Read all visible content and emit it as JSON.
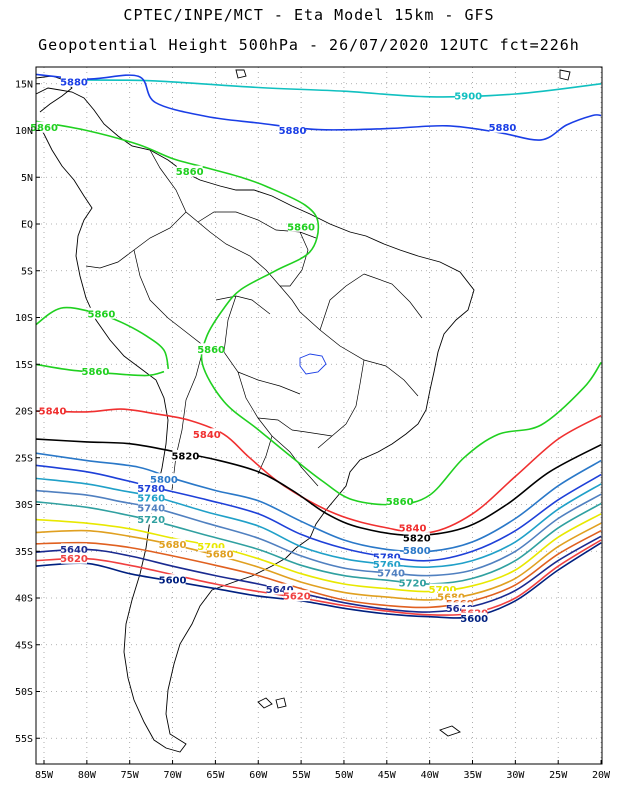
{
  "title_line1": "CPTEC/INPE/MCT -  Eta Model 15km - GFS",
  "title_line2": "Geopotential Height 500hPa - 26/07/2020 12UTC fct=226h",
  "lat_ticks": [
    {
      "label": "15N",
      "lat": 15
    },
    {
      "label": "10N",
      "lat": 10
    },
    {
      "label": "5N",
      "lat": 5
    },
    {
      "label": "EQ",
      "lat": 0
    },
    {
      "label": "5S",
      "lat": -5
    },
    {
      "label": "10S",
      "lat": -10
    },
    {
      "label": "15S",
      "lat": -15
    },
    {
      "label": "20S",
      "lat": -20
    },
    {
      "label": "25S",
      "lat": -25
    },
    {
      "label": "30S",
      "lat": -30
    },
    {
      "label": "35S",
      "lat": -35
    },
    {
      "label": "40S",
      "lat": -40
    },
    {
      "label": "45S",
      "lat": -45
    },
    {
      "label": "50S",
      "lat": -50
    },
    {
      "label": "55S",
      "lat": -55
    }
  ],
  "lon_ticks": [
    {
      "label": "85W",
      "lon": -85
    },
    {
      "label": "80W",
      "lon": -80
    },
    {
      "label": "75W",
      "lon": -75
    },
    {
      "label": "70W",
      "lon": -70
    },
    {
      "label": "65W",
      "lon": -65
    },
    {
      "label": "60W",
      "lon": -60
    },
    {
      "label": "55W",
      "lon": -55
    },
    {
      "label": "50W",
      "lon": -50
    },
    {
      "label": "45W",
      "lon": -45
    },
    {
      "label": "40W",
      "lon": -40
    },
    {
      "label": "35W",
      "lon": -35
    },
    {
      "label": "30W",
      "lon": -30
    },
    {
      "label": "25W",
      "lon": -25
    },
    {
      "label": "20W",
      "lon": -20
    }
  ],
  "contours": [
    {
      "value": 5900,
      "label": "5900",
      "color": "#10c0c0",
      "pts": [
        [
          -80.5,
          15.4
        ],
        [
          -72,
          15.3
        ],
        [
          -60,
          14.6
        ],
        [
          -50,
          14.2
        ],
        [
          -40,
          13.6
        ],
        [
          -30,
          13.9
        ],
        [
          -20,
          15.0
        ]
      ],
      "labels": [
        [
          -35.5,
          13.7
        ]
      ]
    },
    {
      "value": 5880,
      "label": "5880",
      "color": "#1a3ee6",
      "pts": [
        [
          -86,
          16
        ],
        [
          -80,
          15.5
        ],
        [
          -74,
          15.8
        ],
        [
          -72,
          13
        ],
        [
          -66,
          11.5
        ],
        [
          -60,
          10.8
        ],
        [
          -53,
          10.1
        ],
        [
          -45,
          10.2
        ],
        [
          -38,
          10.5
        ],
        [
          -32,
          9.8
        ],
        [
          -27,
          9.0
        ],
        [
          -24,
          10.6
        ],
        [
          -21,
          11.6
        ],
        [
          -20,
          11.6
        ]
      ],
      "labels": [
        [
          -81.5,
          15.2
        ],
        [
          -56,
          10.0
        ],
        [
          -31.5,
          10.3
        ]
      ]
    },
    {
      "value": 5860,
      "label": "5860",
      "color": "#20d020",
      "pts": [
        [
          -86,
          11
        ],
        [
          -80,
          10
        ],
        [
          -74,
          8.5
        ],
        [
          -70,
          7
        ],
        [
          -66,
          6
        ],
        [
          -62,
          5
        ],
        [
          -59,
          4
        ],
        [
          -54.5,
          2
        ],
        [
          -53,
          0
        ],
        [
          -54,
          -3
        ],
        [
          -58,
          -5
        ],
        [
          -62,
          -7
        ],
        [
          -64,
          -9
        ],
        [
          -66,
          -12
        ],
        [
          -66.5,
          -15
        ],
        [
          -64,
          -19
        ],
        [
          -60,
          -22
        ],
        [
          -56,
          -25
        ],
        [
          -52.5,
          -27.5
        ],
        [
          -49,
          -29.5
        ],
        [
          -44,
          -30
        ],
        [
          -40,
          -29
        ],
        [
          -36,
          -25
        ],
        [
          -32,
          -22.5
        ],
        [
          -27,
          -21.5
        ],
        [
          -22,
          -17.5
        ],
        [
          -20,
          -14.8
        ]
      ],
      "labels": [
        [
          -85,
          10.3
        ],
        [
          -68,
          5.6
        ],
        [
          -55,
          -0.3
        ],
        [
          -65.5,
          -13.4
        ],
        [
          -43.5,
          -29.7
        ]
      ]
    },
    {
      "value": 5860,
      "label": "5860",
      "color": "#20d020",
      "pts": [
        [
          -86,
          -10.8
        ],
        [
          -83,
          -9
        ],
        [
          -79,
          -9.5
        ],
        [
          -76,
          -10.5
        ],
        [
          -73,
          -12
        ],
        [
          -71,
          -13.5
        ],
        [
          -70.5,
          -15.5
        ]
      ],
      "labels": [
        [
          -78.3,
          -9.6
        ]
      ]
    },
    {
      "value": 5860,
      "label": "5860",
      "color": "#20d020",
      "pts": [
        [
          -86,
          -15
        ],
        [
          -82,
          -15.6
        ],
        [
          -77,
          -16
        ],
        [
          -73,
          -16.2
        ],
        [
          -71,
          -15.8
        ]
      ],
      "labels": [
        [
          -79,
          -15.8
        ]
      ]
    },
    {
      "value": 5840,
      "label": "5840",
      "color": "#f03030",
      "pts": [
        [
          -86,
          -20
        ],
        [
          -80,
          -20.1
        ],
        [
          -76,
          -19.8
        ],
        [
          -72,
          -20.3
        ],
        [
          -68,
          -21
        ],
        [
          -64,
          -22.5
        ],
        [
          -61,
          -25
        ],
        [
          -57,
          -28
        ],
        [
          -51,
          -31
        ],
        [
          -45,
          -32.5
        ],
        [
          -40,
          -33
        ],
        [
          -35,
          -31
        ],
        [
          -30,
          -27
        ],
        [
          -25,
          -23
        ],
        [
          -20,
          -20.5
        ]
      ],
      "labels": [
        [
          -84,
          -20
        ],
        [
          -66,
          -22.5
        ],
        [
          -42,
          -32.5
        ]
      ]
    },
    {
      "value": 5820,
      "label": "5820",
      "color": "#000000",
      "pts": [
        [
          -86,
          -23
        ],
        [
          -80,
          -23.3
        ],
        [
          -75,
          -23.5
        ],
        [
          -70,
          -24.3
        ],
        [
          -65,
          -25.2
        ],
        [
          -60,
          -26.5
        ],
        [
          -56,
          -28.5
        ],
        [
          -52,
          -31
        ],
        [
          -48,
          -32.5
        ],
        [
          -42,
          -33.3
        ],
        [
          -36,
          -32.5
        ],
        [
          -31,
          -30
        ],
        [
          -26,
          -26.5
        ],
        [
          -20,
          -23.6
        ]
      ],
      "labels": [
        [
          -68.5,
          -24.8
        ],
        [
          -41.5,
          -33.6
        ]
      ]
    },
    {
      "value": 5800,
      "label": "5800",
      "color": "#2a78c8",
      "pts": [
        [
          -86,
          -24.5
        ],
        [
          -80,
          -25.3
        ],
        [
          -74,
          -26
        ],
        [
          -70,
          -27.2
        ],
        [
          -65,
          -28.5
        ],
        [
          -60,
          -29.6
        ],
        [
          -55,
          -31.8
        ],
        [
          -50,
          -33.8
        ],
        [
          -45,
          -34.8
        ],
        [
          -40,
          -35
        ],
        [
          -35,
          -34
        ],
        [
          -30,
          -31.5
        ],
        [
          -25,
          -28
        ],
        [
          -20,
          -25.3
        ]
      ],
      "labels": [
        [
          -71,
          -27.3
        ],
        [
          -41.5,
          -34.9
        ]
      ]
    },
    {
      "value": 5780,
      "label": "5780",
      "color": "#1e40d8",
      "pts": [
        [
          -86,
          -25.8
        ],
        [
          -80,
          -26.5
        ],
        [
          -76,
          -27.3
        ],
        [
          -72,
          -28.2
        ],
        [
          -66,
          -29.5
        ],
        [
          -60,
          -31
        ],
        [
          -55,
          -33.2
        ],
        [
          -50,
          -34.7
        ],
        [
          -45,
          -35.6
        ],
        [
          -40,
          -36
        ],
        [
          -35,
          -35
        ],
        [
          -30,
          -32.8
        ],
        [
          -25,
          -29.5
        ],
        [
          -20,
          -26.8
        ]
      ],
      "labels": [
        [
          -72.5,
          -28.3
        ],
        [
          -45,
          -35.6
        ]
      ]
    },
    {
      "value": 5760,
      "label": "5760",
      "color": "#20a0c8",
      "pts": [
        [
          -86,
          -27.2
        ],
        [
          -80,
          -27.8
        ],
        [
          -76,
          -28.5
        ],
        [
          -72,
          -29.2
        ],
        [
          -66,
          -30.8
        ],
        [
          -60,
          -32.3
        ],
        [
          -55,
          -34.5
        ],
        [
          -50,
          -35.8
        ],
        [
          -45,
          -36.4
        ],
        [
          -40,
          -36.7
        ],
        [
          -35,
          -36
        ],
        [
          -30,
          -34
        ],
        [
          -25,
          -30.5
        ],
        [
          -20,
          -27.8
        ]
      ],
      "labels": [
        [
          -72.5,
          -29.3
        ],
        [
          -45,
          -36.4
        ]
      ]
    },
    {
      "value": 5740,
      "label": "5740",
      "color": "#5080c0",
      "pts": [
        [
          -86,
          -28.5
        ],
        [
          -80,
          -29
        ],
        [
          -76,
          -29.7
        ],
        [
          -72,
          -30.4
        ],
        [
          -66,
          -32
        ],
        [
          -60,
          -33.6
        ],
        [
          -55,
          -35.5
        ],
        [
          -50,
          -36.8
        ],
        [
          -45,
          -37.3
        ],
        [
          -40,
          -37.6
        ],
        [
          -35,
          -37
        ],
        [
          -30,
          -35
        ],
        [
          -25,
          -31.5
        ],
        [
          -20,
          -28.9
        ]
      ],
      "labels": [
        [
          -72.5,
          -30.4
        ],
        [
          -44.5,
          -37.3
        ]
      ]
    },
    {
      "value": 5720,
      "label": "5720",
      "color": "#30a0a0",
      "pts": [
        [
          -86,
          -29.7
        ],
        [
          -80,
          -30.3
        ],
        [
          -76,
          -31
        ],
        [
          -72,
          -31.8
        ],
        [
          -66,
          -33.3
        ],
        [
          -60,
          -34.8
        ],
        [
          -55,
          -36.5
        ],
        [
          -50,
          -37.6
        ],
        [
          -45,
          -38.1
        ],
        [
          -40,
          -38.5
        ],
        [
          -35,
          -37.9
        ],
        [
          -30,
          -36
        ],
        [
          -25,
          -32.5
        ],
        [
          -20,
          -29.9
        ]
      ],
      "labels": [
        [
          -72.5,
          -31.6
        ],
        [
          -42,
          -38.4
        ]
      ]
    },
    {
      "value": 5700,
      "label": "5700",
      "color": "#e8e800",
      "pts": [
        [
          -86,
          -31.6
        ],
        [
          -80,
          -32
        ],
        [
          -75,
          -32.6
        ],
        [
          -70,
          -33.6
        ],
        [
          -65,
          -34.5
        ],
        [
          -60,
          -35.8
        ],
        [
          -55,
          -37.4
        ],
        [
          -50,
          -38.5
        ],
        [
          -45,
          -39
        ],
        [
          -40,
          -39.3
        ],
        [
          -35,
          -38.7
        ],
        [
          -30,
          -37
        ],
        [
          -25,
          -33.5
        ],
        [
          -20,
          -31
        ]
      ],
      "labels": [
        [
          -65.5,
          -34.5
        ],
        [
          -38.5,
          -39.1
        ]
      ]
    },
    {
      "value": 5680,
      "label": "5680",
      "color": "#e0a020",
      "pts": [
        [
          -86,
          -33
        ],
        [
          -80,
          -32.8
        ],
        [
          -75,
          -33.4
        ],
        [
          -70,
          -34.3
        ],
        [
          -65,
          -35.4
        ],
        [
          -60,
          -36.7
        ],
        [
          -55,
          -38.3
        ],
        [
          -50,
          -39.4
        ],
        [
          -45,
          -39.9
        ],
        [
          -40,
          -40.2
        ],
        [
          -35,
          -39.6
        ],
        [
          -30,
          -37.9
        ],
        [
          -25,
          -34.5
        ],
        [
          -20,
          -32
        ]
      ],
      "labels": [
        [
          -70,
          -34.3
        ],
        [
          -64.5,
          -35.3
        ],
        [
          -37.5,
          -39.9
        ]
      ]
    },
    {
      "value": 5660,
      "label": "5660",
      "color": "#e06020",
      "pts": [
        [
          -86,
          -34.2
        ],
        [
          -80,
          -34.1
        ],
        [
          -75,
          -34.6
        ],
        [
          -70,
          -35.5
        ],
        [
          -65,
          -36.5
        ],
        [
          -60,
          -37.6
        ],
        [
          -55,
          -39
        ],
        [
          -50,
          -40.2
        ],
        [
          -45,
          -40.8
        ],
        [
          -40,
          -41
        ],
        [
          -35,
          -40.3
        ],
        [
          -30,
          -38.6
        ],
        [
          -25,
          -35.3
        ],
        [
          -20,
          -32.8
        ]
      ],
      "labels": [
        [
          -36.5,
          -40.6
        ]
      ]
    },
    {
      "value": 5640,
      "label": "5640",
      "color": "#1a2a90",
      "pts": [
        [
          -86,
          -35.1
        ],
        [
          -80,
          -34.8
        ],
        [
          -75,
          -35.5
        ],
        [
          -70,
          -36.6
        ],
        [
          -65,
          -37.6
        ],
        [
          -60,
          -38.5
        ],
        [
          -55,
          -39.5
        ],
        [
          -50,
          -40.5
        ],
        [
          -45,
          -41.2
        ],
        [
          -40,
          -41.5
        ],
        [
          -35,
          -40.9
        ],
        [
          -30,
          -39.2
        ],
        [
          -25,
          -36
        ],
        [
          -20,
          -33.4
        ]
      ],
      "labels": [
        [
          -81.5,
          -34.8
        ],
        [
          -57.5,
          -39.1
        ],
        [
          -36.5,
          -41.1
        ]
      ]
    },
    {
      "value": 5620,
      "label": "5620",
      "color": "#f04040",
      "pts": [
        [
          -86,
          -36
        ],
        [
          -80,
          -35.8
        ],
        [
          -75,
          -36.5
        ],
        [
          -70,
          -37.5
        ],
        [
          -65,
          -38.5
        ],
        [
          -60,
          -39.3
        ],
        [
          -55,
          -40
        ],
        [
          -50,
          -40.8
        ],
        [
          -45,
          -41.4
        ],
        [
          -40,
          -41.8
        ],
        [
          -35,
          -41.6
        ],
        [
          -30,
          -40
        ],
        [
          -25,
          -36.6
        ],
        [
          -20,
          -33.8
        ]
      ],
      "labels": [
        [
          -81.5,
          -35.8
        ],
        [
          -55.5,
          -39.8
        ],
        [
          -34.8,
          -41.6
        ]
      ]
    },
    {
      "value": 5600,
      "label": "5600",
      "color": "#002080",
      "pts": [
        [
          -86,
          -36.6
        ],
        [
          -80,
          -36.3
        ],
        [
          -75,
          -37.4
        ],
        [
          -70,
          -38.2
        ],
        [
          -65,
          -39
        ],
        [
          -60,
          -39.8
        ],
        [
          -55,
          -40.3
        ],
        [
          -50,
          -41.1
        ],
        [
          -45,
          -41.7
        ],
        [
          -40,
          -42
        ],
        [
          -35,
          -42
        ],
        [
          -30,
          -40.3
        ],
        [
          -25,
          -37
        ],
        [
          -20,
          -34.1
        ]
      ],
      "labels": [
        [
          -70,
          -38.1
        ],
        [
          -34.8,
          -42.2
        ]
      ]
    }
  ]
}
